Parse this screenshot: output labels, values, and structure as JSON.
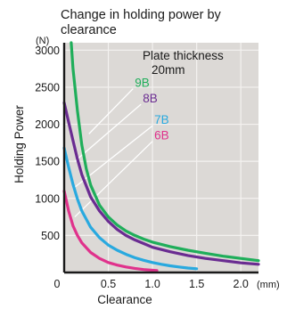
{
  "chart_data": {
    "type": "line",
    "title_lines": [
      "Change in holding power by",
      "clearance"
    ],
    "xlabel": "Clearance",
    "ylabel": "Holding Power",
    "x_unit": "(mm)",
    "y_unit": "(N)",
    "annotation": [
      "Plate thickness",
      "20mm"
    ],
    "xlim": [
      0,
      2.2
    ],
    "ylim": [
      0,
      3100
    ],
    "x_ticks": [
      0,
      0.5,
      1.0,
      1.5,
      2.0
    ],
    "x_tick_labels": [
      "0",
      "0.5",
      "1.0",
      "1.5",
      "2.0"
    ],
    "y_ticks": [
      500,
      1000,
      1500,
      2000,
      2500,
      3000
    ],
    "y_tick_labels": [
      "500",
      "1000",
      "1500",
      "2000",
      "2500",
      "3000"
    ],
    "grid": true,
    "series": [
      {
        "name": "9B",
        "color": "#1fae5a",
        "x": [
          0.08,
          0.1,
          0.15,
          0.2,
          0.25,
          0.3,
          0.4,
          0.5,
          0.6,
          0.7,
          0.8,
          0.9,
          1.0,
          1.2,
          1.4,
          1.6,
          1.8,
          2.0,
          2.2
        ],
        "y": [
          3100,
          2750,
          2180,
          1720,
          1400,
          1180,
          910,
          750,
          640,
          560,
          500,
          450,
          410,
          350,
          300,
          260,
          220,
          190,
          160
        ]
      },
      {
        "name": "8B",
        "color": "#6a2c91",
        "x": [
          0.0,
          0.05,
          0.1,
          0.15,
          0.2,
          0.3,
          0.4,
          0.5,
          0.6,
          0.7,
          0.8,
          0.9,
          1.0,
          1.2,
          1.4,
          1.6,
          1.8,
          2.0,
          2.2
        ],
        "y": [
          2290,
          2030,
          1780,
          1530,
          1320,
          1020,
          830,
          690,
          580,
          500,
          440,
          390,
          340,
          280,
          230,
          190,
          160,
          130,
          110
        ]
      },
      {
        "name": "7B",
        "color": "#29a9df",
        "x": [
          0.0,
          0.05,
          0.1,
          0.15,
          0.2,
          0.3,
          0.4,
          0.5,
          0.6,
          0.7,
          0.8,
          0.9,
          1.0,
          1.1,
          1.2,
          1.3,
          1.4,
          1.5
        ],
        "y": [
          1680,
          1420,
          1190,
          990,
          830,
          610,
          470,
          370,
          300,
          245,
          200,
          165,
          135,
          110,
          90,
          75,
          60,
          50
        ]
      },
      {
        "name": "6B",
        "color": "#e0328c",
        "x": [
          0.0,
          0.05,
          0.1,
          0.15,
          0.2,
          0.3,
          0.4,
          0.5,
          0.6,
          0.7,
          0.8,
          0.9,
          1.0,
          1.05
        ],
        "y": [
          1100,
          830,
          630,
          500,
          400,
          270,
          190,
          135,
          100,
          75,
          55,
          40,
          30,
          25
        ]
      }
    ],
    "leader_lines": [
      {
        "series": "9B",
        "from": [
          0.28,
          1870
        ],
        "to": [
          0.78,
          2480
        ]
      },
      {
        "series": "8B",
        "from": [
          0.12,
          1500
        ],
        "to": [
          0.87,
          2270
        ]
      },
      {
        "series": "7B",
        "from": [
          0.12,
          1150
        ],
        "to": [
          1.0,
          1980
        ]
      },
      {
        "series": "6B",
        "from": [
          0.12,
          750
        ],
        "to": [
          1.0,
          1770
        ]
      }
    ]
  }
}
